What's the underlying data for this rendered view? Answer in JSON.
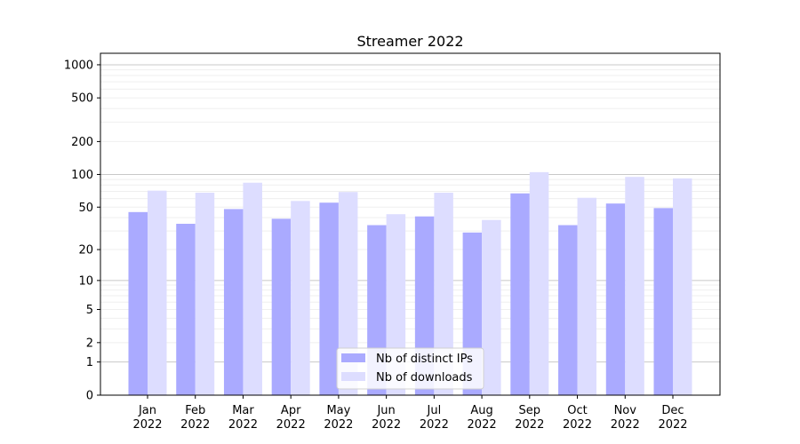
{
  "chart_data": {
    "type": "bar",
    "title": "Streamer 2022",
    "xlabel": "",
    "ylabel": "",
    "yscale": "log10(y+1)",
    "ylim": [
      0,
      1300
    ],
    "yticks": [
      0,
      1,
      2,
      5,
      10,
      20,
      50,
      100,
      200,
      500,
      1000
    ],
    "ytick_labels": [
      "0",
      "1",
      "2",
      "5",
      "10",
      "20",
      "50",
      "100",
      "200",
      "500",
      "1000"
    ],
    "grid": true,
    "legend_position": "lower center",
    "categories": [
      "Jan\n2022",
      "Feb\n2022",
      "Mar\n2022",
      "Apr\n2022",
      "May\n2022",
      "Jun\n2022",
      "Jul\n2022",
      "Aug\n2022",
      "Sep\n2022",
      "Oct\n2022",
      "Nov\n2022",
      "Dec\n2022"
    ],
    "series": [
      {
        "name": "Nb of distinct IPs",
        "color": "#aaaaff",
        "values": [
          45,
          35,
          48,
          39,
          55,
          34,
          41,
          29,
          67,
          34,
          54,
          49
        ]
      },
      {
        "name": "Nb of downloads",
        "color": "#ddddff",
        "values": [
          71,
          68,
          84,
          57,
          69,
          43,
          68,
          38,
          105,
          61,
          95,
          92
        ]
      }
    ]
  }
}
